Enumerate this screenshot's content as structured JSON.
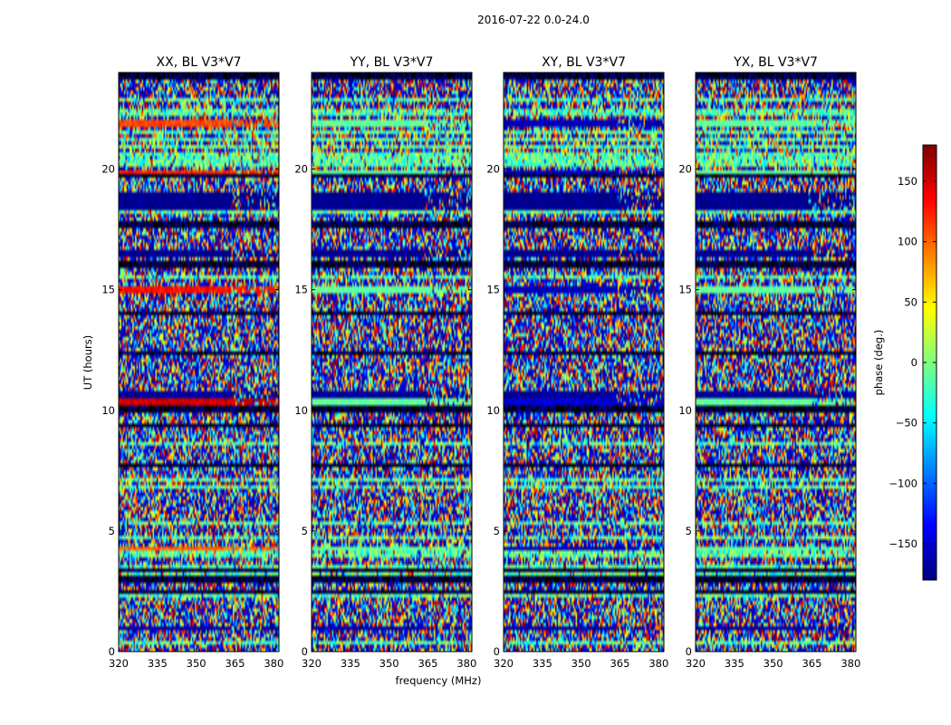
{
  "chart_data": {
    "type": "heatmap",
    "suptitle": "2016-07-22 0.0-24.0",
    "xlabel": "frequency (MHz)",
    "ylabel": "UT (hours)",
    "xlim": [
      320,
      382
    ],
    "ylim": [
      0,
      24
    ],
    "xticks": [
      320,
      335,
      350,
      365,
      380
    ],
    "yticks": [
      0,
      5,
      10,
      15,
      20
    ],
    "panels": [
      {
        "title": "XX, BL V3*V7",
        "seed": 11
      },
      {
        "title": "YY, BL V3*V7",
        "seed": 23
      },
      {
        "title": "XY, BL V3*V7",
        "seed": 37
      },
      {
        "title": "YX, BL V3*V7",
        "seed": 53
      }
    ],
    "colorbar": {
      "label": "phase (deg.)",
      "range": [
        -180,
        180
      ],
      "ticks": [
        150,
        100,
        50,
        0,
        -50,
        -100,
        -150
      ],
      "tick_labels": [
        "150",
        "100",
        "50",
        "0",
        "−50",
        "−100",
        "−150"
      ],
      "colormap": "jet"
    },
    "bands": [
      {
        "t0": 18.3,
        "t1": 19.0,
        "phase": -175
      },
      {
        "t0": 10.25,
        "t1": 10.55,
        "phase": 150,
        "vary": [
          1,
          0,
          2,
          0
        ]
      },
      {
        "t0": 10.55,
        "t1": 10.8,
        "phase": -170
      },
      {
        "t0": 16.3,
        "t1": 16.6,
        "phase": -175
      },
      {
        "t0": 14.9,
        "t1": 15.2,
        "phase": 130,
        "vary": [
          1,
          0,
          0,
          0
        ]
      },
      {
        "t0": 21.8,
        "t1": 22.1,
        "phase": 110,
        "vary": [
          1,
          0,
          0,
          0
        ]
      },
      {
        "t0": 19.8,
        "t1": 20.0,
        "phase": 120,
        "vary": [
          1,
          0,
          0,
          0
        ]
      },
      {
        "t0": 0.9,
        "t1": 1.1,
        "phase": -170
      },
      {
        "t0": 4.15,
        "t1": 4.35,
        "phase": 100,
        "vary": [
          1,
          0,
          0,
          0
        ]
      }
    ]
  }
}
